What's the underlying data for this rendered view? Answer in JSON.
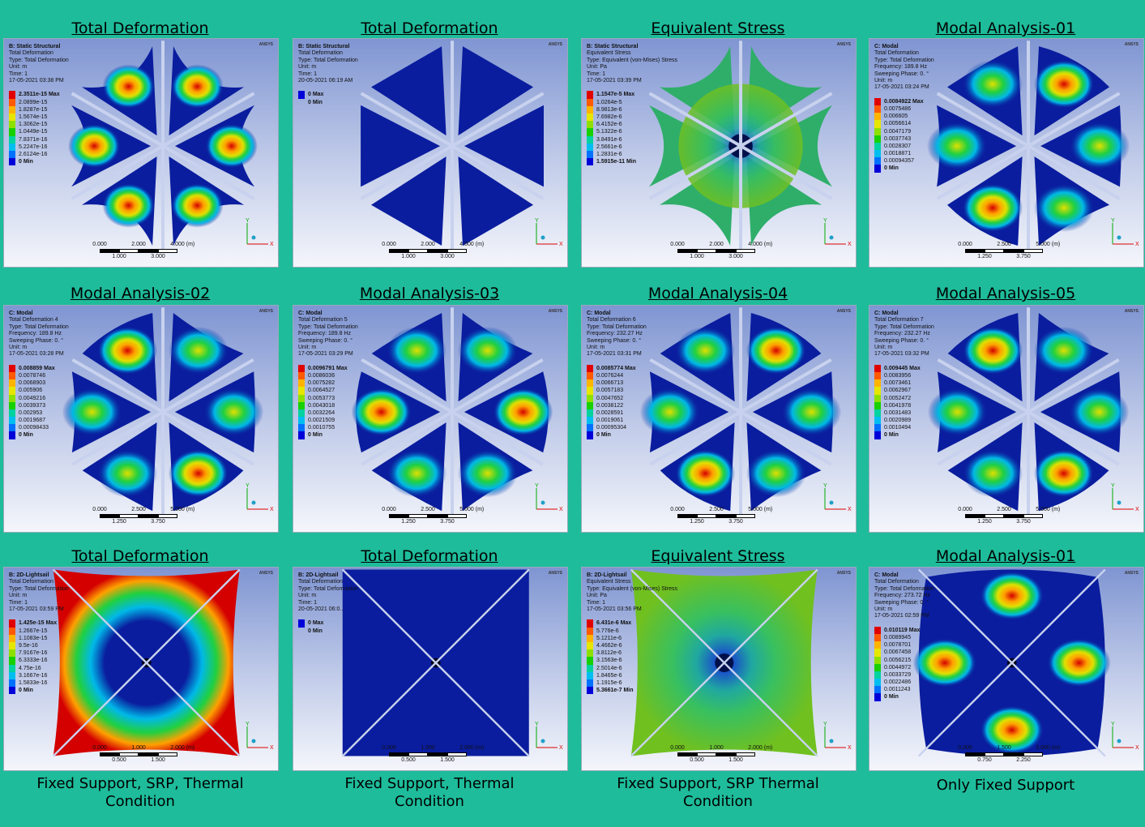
{
  "panels": [
    {
      "title": "Total Deformation",
      "logo": "ANSYS",
      "info": [
        "B: Static Structural",
        "Total Deformation",
        "Type: Total Deformation",
        "Unit: m",
        "Time: 1",
        "17-05-2021 03:38 PM"
      ],
      "legend": [
        "2.3511e-15 Max",
        "2.0899e-15",
        "1.8287e-15",
        "1.5674e-15",
        "1.3062e-15",
        "1.0449e-15",
        "7.8371e-16",
        "5.2247e-16",
        "2.6124e-16",
        "0 Min"
      ],
      "scale": {
        "top": [
          "0.000",
          "2.000",
          "4.000 (m)"
        ],
        "bottom": [
          "1.000",
          "3.000"
        ]
      }
    },
    {
      "title": "Total Deformation",
      "logo": "ANSYS",
      "info": [
        "B: Static Structural",
        "Total Deformation",
        "Type: Total Deformation",
        "Unit: m",
        "Time: 1",
        "20-05-2021 06:19 AM"
      ],
      "legend": [
        "0 Max",
        "0 Min"
      ],
      "scale": {
        "top": [
          "0.000",
          "2.000",
          "4.000 (m)"
        ],
        "bottom": [
          "1.000",
          "3.000"
        ]
      }
    },
    {
      "title": "Equivalent Stress",
      "logo": "ANSYS",
      "info": [
        "B: Static Structural",
        "Equivalent Stress",
        "Type: Equivalent (von-Mises) Stress",
        "Unit: Pa",
        "Time: 1",
        "17-05-2021 03:39 PM"
      ],
      "legend": [
        "1.1547e-5 Max",
        "1.0264e-5",
        "8.9813e-6",
        "7.6982e-6",
        "6.4152e-6",
        "5.1322e-6",
        "3.8491e-6",
        "2.5661e-6",
        "1.2831e-6",
        "1.5915e-11 Min"
      ],
      "scale": {
        "top": [
          "0.000",
          "2.000",
          "4.000 (m)"
        ],
        "bottom": [
          "1.000",
          "3.000"
        ]
      }
    },
    {
      "title": "Modal Analysis-01",
      "logo": "ANSYS",
      "info": [
        "C: Modal",
        "Total Deformation",
        "Type: Total Deformation",
        "Frequency: 189.8 Hz",
        "Sweeping Phase: 0. °",
        "Unit: m",
        "17-05-2021 03:24 PM"
      ],
      "legend": [
        "0.0084922 Max",
        "0.0075486",
        "0.006605",
        "0.0056614",
        "0.0047179",
        "0.0037743",
        "0.0028307",
        "0.0018871",
        "0.00094357",
        "0 Min"
      ],
      "scale": {
        "top": [
          "0.000",
          "2.500",
          "5.000 (m)"
        ],
        "bottom": [
          "1.250",
          "3.750"
        ]
      }
    },
    {
      "title": "Modal Analysis-02",
      "logo": "ANSYS",
      "info": [
        "C: Modal",
        "Total Deformation 4",
        "Type: Total Deformation",
        "Frequency: 189.8 Hz",
        "Sweeping Phase: 0. °",
        "Unit: m",
        "17-05-2021 03:28 PM"
      ],
      "legend": [
        "0.008859 Max",
        "0.0078746",
        "0.0068903",
        "0.005906",
        "0.0049216",
        "0.0039373",
        "0.002953",
        "0.0019687",
        "0.00098433",
        "0 Min"
      ],
      "scale": {
        "top": [
          "0.000",
          "2.500",
          "5.000 (m)"
        ],
        "bottom": [
          "1.250",
          "3.750"
        ]
      }
    },
    {
      "title": "Modal Analysis-03",
      "logo": "ANSYS",
      "info": [
        "C: Modal",
        "Total Deformation 5",
        "Type: Total Deformation",
        "Frequency: 189.8 Hz",
        "Sweeping Phase: 0. °",
        "Unit: m",
        "17-05-2021 03:29 PM"
      ],
      "legend": [
        "0.0096791 Max",
        "0.0086036",
        "0.0075282",
        "0.0064527",
        "0.0053773",
        "0.0043018",
        "0.0032264",
        "0.0021509",
        "0.0010755",
        "0 Min"
      ],
      "scale": {
        "top": [
          "0.000",
          "2.500",
          "5.000 (m)"
        ],
        "bottom": [
          "1.250",
          "3.750"
        ]
      }
    },
    {
      "title": "Modal Analysis-04",
      "logo": "ANSYS",
      "info": [
        "C: Modal",
        "Total Deformation 6",
        "Type: Total Deformation",
        "Frequency: 232.27 Hz",
        "Sweeping Phase: 0. °",
        "Unit: m",
        "17-05-2021 03:31 PM"
      ],
      "legend": [
        "0.0085774 Max",
        "0.0076244",
        "0.0066713",
        "0.0057183",
        "0.0047652",
        "0.0038122",
        "0.0028591",
        "0.0019061",
        "0.00095304",
        "0 Min"
      ],
      "scale": {
        "top": [
          "0.000",
          "2.500",
          "5.000 (m)"
        ],
        "bottom": [
          "1.250",
          "3.750"
        ]
      }
    },
    {
      "title": "Modal Analysis-05",
      "logo": "ANSYS",
      "info": [
        "C: Modal",
        "Total Deformation 7",
        "Type: Total Deformation",
        "Frequency: 232.27 Hz",
        "Sweeping Phase: 0. °",
        "Unit: m",
        "17-05-2021 03:32 PM"
      ],
      "legend": [
        "0.009445 Max",
        "0.0083956",
        "0.0073461",
        "0.0062967",
        "0.0052472",
        "0.0041978",
        "0.0031483",
        "0.0020989",
        "0.0010494",
        "0 Min"
      ],
      "scale": {
        "top": [
          "0.000",
          "2.500",
          "5.000 (m)"
        ],
        "bottom": [
          "1.250",
          "3.750"
        ]
      }
    },
    {
      "title": "Total Deformation",
      "logo": "ANSYS",
      "info": [
        "B: 2D-Lightsail",
        "Total Deformation",
        "Type: Total Deformation",
        "Unit: m",
        "Time: 1",
        "17-05-2021 03:59 PM"
      ],
      "legend": [
        "1.425e-15 Max",
        "1.2667e-15",
        "1.1083e-15",
        "9.5e-16",
        "7.9167e-16",
        "6.3333e-16",
        "4.75e-16",
        "3.1667e-16",
        "1.5833e-16",
        "0 Min"
      ],
      "scale": {
        "top": [
          "0.000",
          "1.000",
          "2.000 (m)"
        ],
        "bottom": [
          "0.500",
          "1.500"
        ]
      }
    },
    {
      "title": "Total Deformation",
      "logo": "ANSYS",
      "info": [
        "B: 2D-Lightsail",
        "Total Deformation",
        "Type: Total Deformation",
        "Unit: m",
        "Time: 1",
        "20-05-2021 06:0..."
      ],
      "legend": [
        "0 Max",
        "0 Min"
      ],
      "scale": {
        "top": [
          "0.000",
          "1.000",
          "2.000 (m)"
        ],
        "bottom": [
          "0.500",
          "1.500"
        ]
      }
    },
    {
      "title": "Equivalent Stress",
      "logo": "ANSYS",
      "info": [
        "B: 2D-Lightsail",
        "Equivalent Stress",
        "Type: Equivalent (von-Mises) Stress",
        "Unit: Pa",
        "Time: 1",
        "17-05-2021 03:56 PM"
      ],
      "legend": [
        "6.431e-6 Max",
        "5.776e-6",
        "5.1211e-6",
        "4.4662e-6",
        "3.8112e-6",
        "3.1563e-6",
        "2.5014e-6",
        "1.8465e-6",
        "1.1915e-6",
        "5.3661e-7 Min"
      ],
      "scale": {
        "top": [
          "0.000",
          "1.000",
          "2.000 (m)"
        ],
        "bottom": [
          "0.500",
          "1.500"
        ]
      }
    },
    {
      "title": "Modal Analysis-01",
      "logo": "ANSYS",
      "info": [
        "C: Modal",
        "Total Deformation",
        "Type: Total Deformation",
        "Frequency: 273.72 Hz",
        "Sweeping Phase: 0. °",
        "Unit: m",
        "17-05-2021 02:59 PM"
      ],
      "legend": [
        "0.010119 Max",
        "0.0089945",
        "0.0078701",
        "0.0067458",
        "0.0056215",
        "0.0044972",
        "0.0033729",
        "0.0022486",
        "0.0011243",
        "0 Min"
      ],
      "scale": {
        "top": [
          "0.000",
          "1.500",
          "3.000 (m)"
        ],
        "bottom": [
          "0.750",
          "2.250"
        ]
      }
    }
  ],
  "captions": [
    {
      "text": "Fixed Support, SRP, Thermal Condition"
    },
    {
      "text": "Fixed Support, Thermal Condition"
    },
    {
      "text": "Fixed Support, SRP Thermal Condition"
    },
    {
      "text": "Only Fixed Support"
    }
  ],
  "axis_labels": {
    "x": "X",
    "y": "Y"
  },
  "colors": {
    "background": "#1ebc9b",
    "legend": [
      "#e00000",
      "#ff5a00",
      "#ffb400",
      "#e6e600",
      "#8ee000",
      "#18d000",
      "#00d2a0",
      "#00bef0",
      "#0070ff",
      "#0000d8"
    ]
  }
}
